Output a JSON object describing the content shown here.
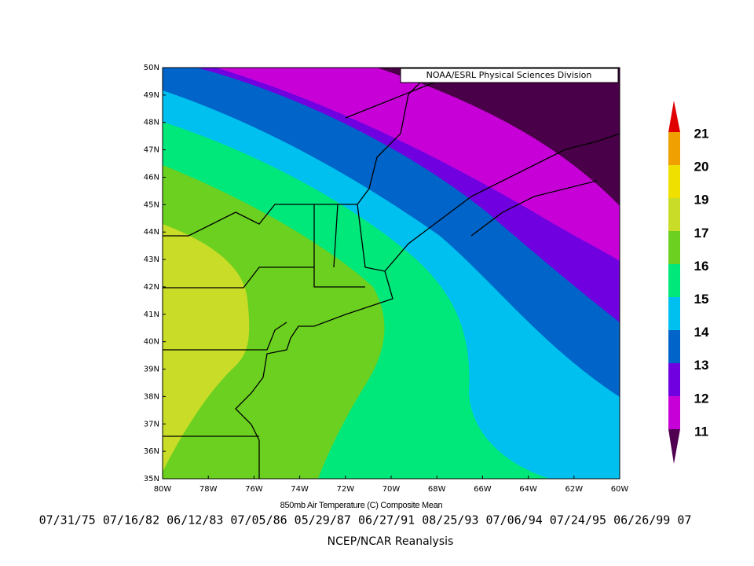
{
  "map": {
    "credit": "NOAA/ESRL Physical Sciences Division",
    "latitude_labels": [
      "50N",
      "49N",
      "48N",
      "47N",
      "46N",
      "45N",
      "44N",
      "43N",
      "42N",
      "41N",
      "40N",
      "39N",
      "38N",
      "37N",
      "36N",
      "35N"
    ],
    "longitude_labels": [
      "80W",
      "78W",
      "76W",
      "74W",
      "72W",
      "70W",
      "68W",
      "66W",
      "64W",
      "62W",
      "60W"
    ],
    "colorbar_levels": [
      21,
      20,
      19,
      17,
      16,
      15,
      14,
      13,
      12,
      11
    ],
    "caption": "850mb Air Temperature (C) Composite Mean",
    "dates": "07/31/75 07/16/82 06/12/83 07/05/86 05/29/87 06/27/91 08/25/93 07/06/94 07/24/95 06/26/99 07",
    "source": "NCEP/NCAR Reanalysis"
  }
}
